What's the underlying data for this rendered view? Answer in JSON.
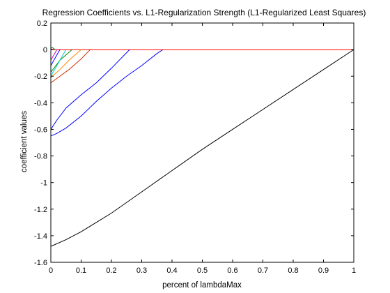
{
  "chart_data": {
    "type": "line",
    "title": "Regression Coefficients vs. L1-Regularization Strength (L1-Regularized Least Squares)",
    "xlabel": "percent of lambdaMax",
    "ylabel": "coefficient values",
    "xlim": [
      0,
      1
    ],
    "ylim": [
      -1.6,
      0.2
    ],
    "xticks": [
      0,
      0.1,
      0.2,
      0.3,
      0.4,
      0.5,
      0.6,
      0.7,
      0.8,
      0.9,
      1
    ],
    "xtick_labels": [
      "0",
      "0.1",
      "0.2",
      "0.3",
      "0.4",
      "0.5",
      "0.6",
      "0.7",
      "0.8",
      "0.9",
      "1"
    ],
    "yticks": [
      0.2,
      0,
      -0.2,
      -0.4,
      -0.6,
      -0.8,
      -1,
      -1.2,
      -1.4,
      -1.6
    ],
    "ytick_labels": [
      "0.2",
      "0",
      "-0.2",
      "-0.4",
      "-0.6",
      "-0.8",
      "-1",
      "-1.2",
      "-1.4",
      "-1.6"
    ],
    "grid": false,
    "legend": "none",
    "series": [
      {
        "color": "#000000",
        "x": [
          0,
          0.05,
          0.1,
          0.2,
          0.3,
          0.4,
          0.5,
          0.6,
          0.7,
          0.8,
          0.9,
          1
        ],
        "y": [
          -1.48,
          -1.43,
          -1.37,
          -1.23,
          -1.07,
          -0.91,
          -0.75,
          -0.6,
          -0.45,
          -0.3,
          -0.15,
          0
        ]
      },
      {
        "color": "#0000ff",
        "x": [
          0,
          0.02,
          0.05,
          0.1,
          0.15,
          0.2,
          0.25,
          0.3,
          0.35,
          0.37
        ],
        "y": [
          -0.65,
          -0.63,
          -0.59,
          -0.5,
          -0.39,
          -0.29,
          -0.2,
          -0.12,
          -0.03,
          0
        ]
      },
      {
        "color": "#0000ff",
        "x": [
          0,
          0.02,
          0.05,
          0.1,
          0.15,
          0.2,
          0.26
        ],
        "y": [
          -0.6,
          -0.53,
          -0.44,
          -0.34,
          -0.25,
          -0.14,
          0
        ]
      },
      {
        "color": "#ff0000",
        "x": [
          0,
          1
        ],
        "y": [
          0,
          0
        ]
      },
      {
        "color": "#cc3300",
        "x": [
          0,
          0.03,
          0.06,
          0.1,
          0.13
        ],
        "y": [
          -0.25,
          -0.2,
          -0.15,
          -0.07,
          0
        ]
      },
      {
        "color": "#ff8800",
        "x": [
          0,
          0.03,
          0.06,
          0.1
        ],
        "y": [
          -0.21,
          -0.15,
          -0.08,
          0
        ]
      },
      {
        "color": "#008800",
        "x": [
          0,
          0.03,
          0.07
        ],
        "y": [
          -0.17,
          -0.08,
          0
        ]
      },
      {
        "color": "#00cccc",
        "x": [
          0,
          0.025,
          0.05
        ],
        "y": [
          -0.2,
          -0.1,
          0
        ]
      },
      {
        "color": "#0000ff",
        "x": [
          0,
          0.015,
          0.03
        ],
        "y": [
          -0.12,
          -0.06,
          0
        ]
      },
      {
        "color": "#cc00cc",
        "x": [
          0,
          0.02
        ],
        "y": [
          -0.08,
          0
        ]
      },
      {
        "color": "#008800",
        "x": [
          0,
          0.005,
          0.015
        ],
        "y": [
          0.01,
          0.015,
          0
        ]
      },
      {
        "color": "#ff0000",
        "x": [
          0,
          0.01
        ],
        "y": [
          0.005,
          0
        ]
      }
    ]
  }
}
